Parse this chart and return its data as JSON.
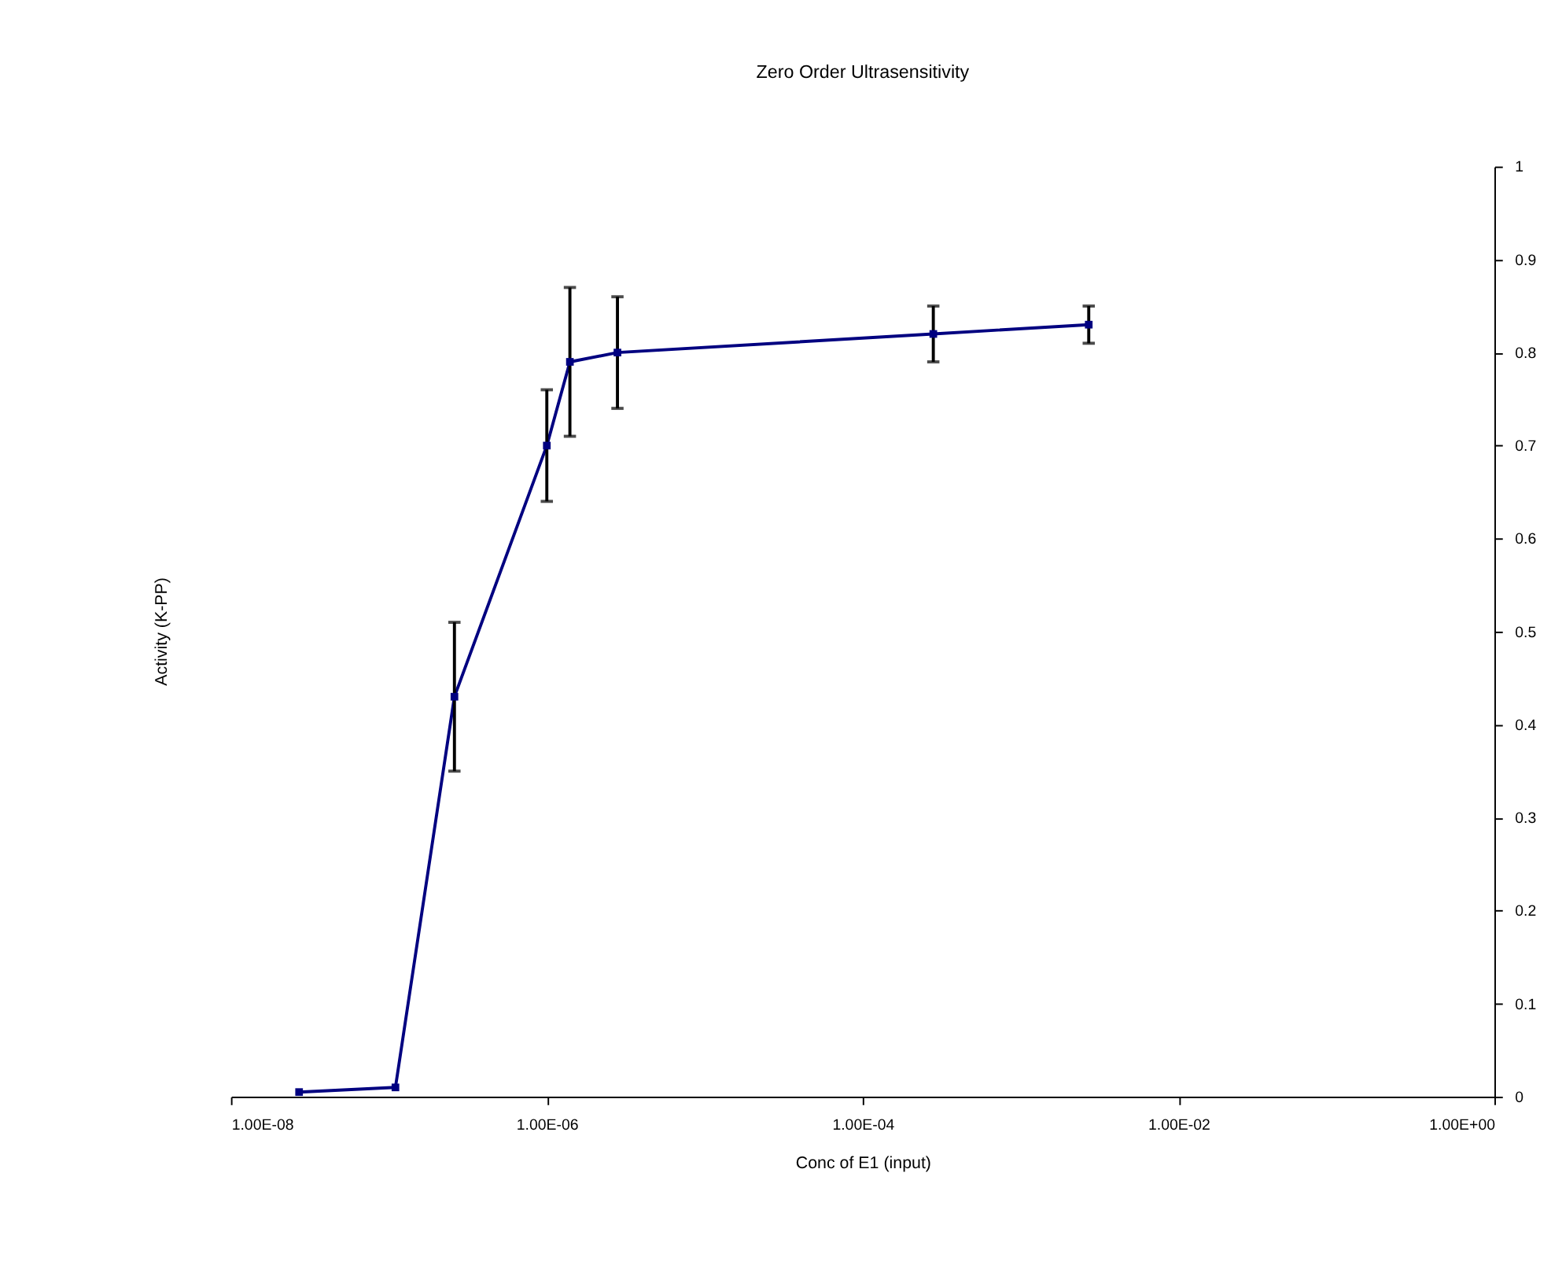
{
  "chart_data": {
    "type": "line",
    "title": "Zero Order Ultrasensitivity",
    "xlabel": "Conc of E1 (input)",
    "ylabel": "Activity (K-PP)",
    "log": "x",
    "xlim": [
      1e-08,
      1
    ],
    "xticks": [
      {
        "value": 1e-08,
        "label": "1.00E-08"
      },
      {
        "value": 1e-06,
        "label": "1.00E-06"
      },
      {
        "value": 0.0001,
        "label": "1.00E-04"
      },
      {
        "value": 0.01,
        "label": "1.00E-02"
      },
      {
        "value": 1,
        "label": "1.00E+00"
      }
    ],
    "ylim": [
      0,
      1
    ],
    "yticks": [
      0,
      0.1,
      0.2,
      0.3,
      0.4,
      0.5,
      0.6,
      0.7,
      0.8,
      0.9,
      1
    ],
    "x": [
      2.7e-08,
      1.1e-07,
      2.6e-07,
      1e-06,
      1.4e-06,
      2.8e-06,
      0.00028,
      0.0027
    ],
    "series": [
      {
        "color": "#000080",
        "values": [
          0.005,
          0.01,
          0.43,
          0.7,
          0.79,
          0.8,
          0.82,
          0.83
        ],
        "errors": [
          null,
          null,
          0.08,
          0.06,
          0.08,
          0.06,
          0.03,
          0.02
        ]
      }
    ],
    "marker": "square",
    "line_style": "solid",
    "grid": false
  }
}
